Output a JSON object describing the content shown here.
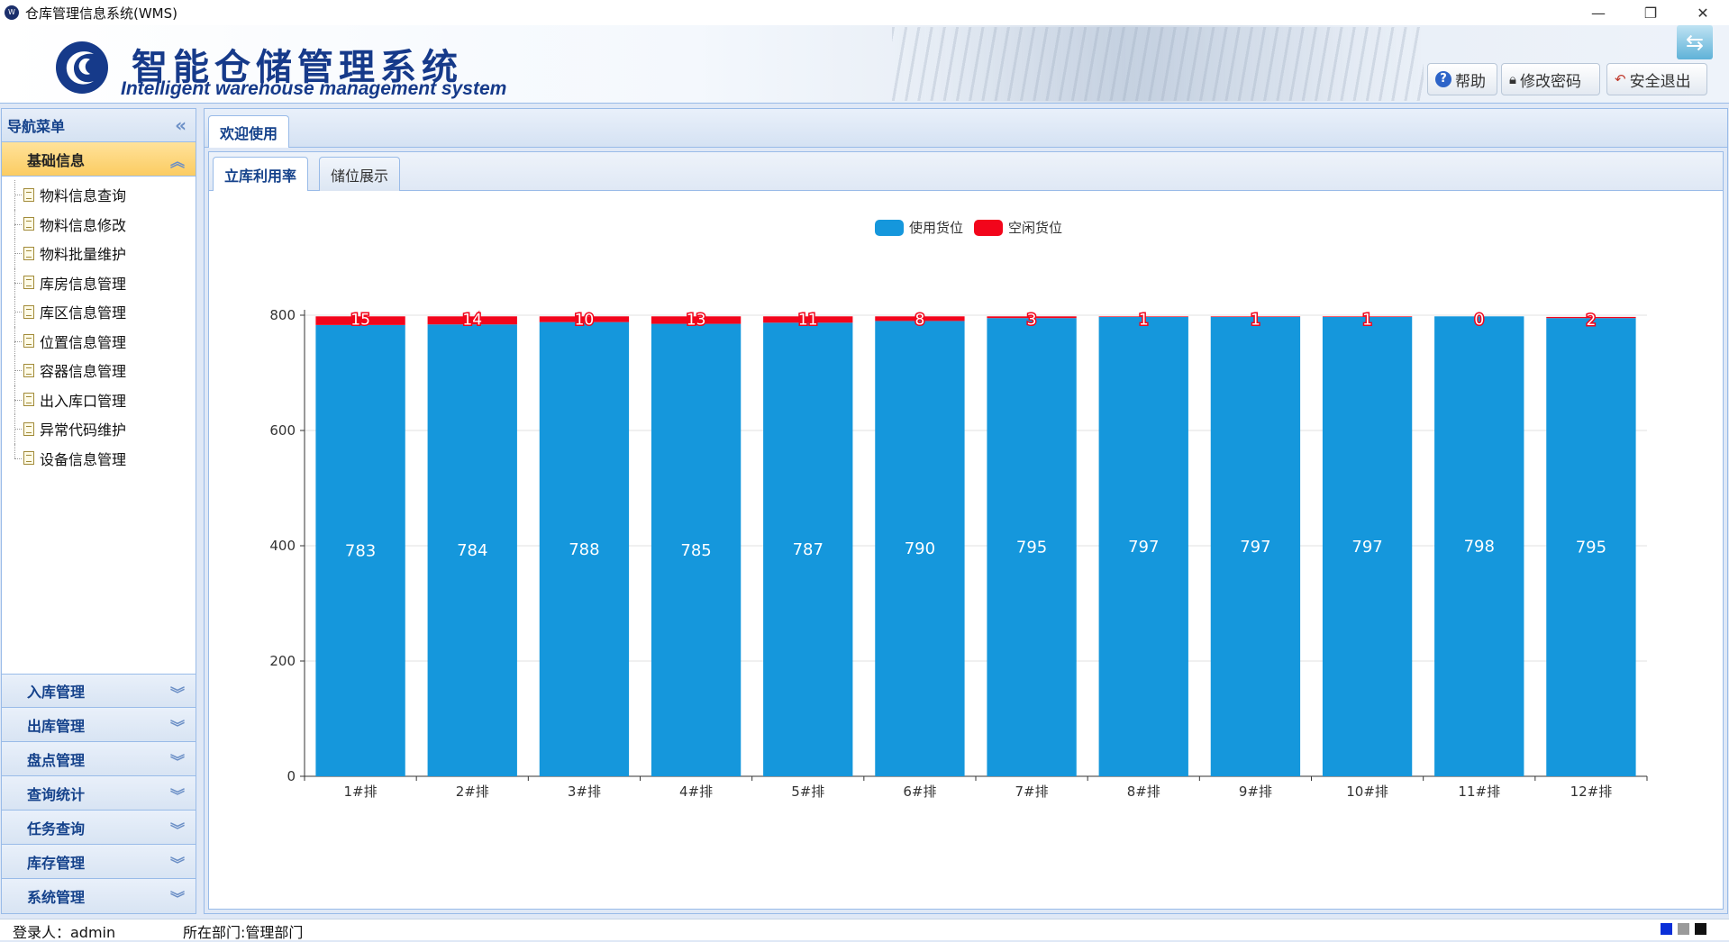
{
  "window": {
    "title": "仓库管理信息系统(WMS)",
    "minimize": "—",
    "maximize": "❐",
    "close": "✕"
  },
  "header": {
    "brand_cn": "智能仓储管理系统",
    "brand_en": "Intelligent warehouse management system",
    "buttons": {
      "help": "帮助",
      "change_password": "修改密码",
      "logout": "安全退出"
    }
  },
  "nav": {
    "title": "导航菜单",
    "active_section": "基础信息",
    "items": [
      "物料信息查询",
      "物料信息修改",
      "物料批量维护",
      "库房信息管理",
      "库区信息管理",
      "位置信息管理",
      "容器信息管理",
      "出入库口管理",
      "异常代码维护",
      "设备信息管理"
    ],
    "sections": [
      "入库管理",
      "出库管理",
      "盘点管理",
      "查询统计",
      "任务查询",
      "库存管理",
      "系统管理"
    ]
  },
  "tabs": {
    "outer": [
      "欢迎使用"
    ],
    "inner": [
      "立库利用率",
      "储位展示"
    ]
  },
  "status": {
    "user": "登录人：admin",
    "dept": "所在部门:管理部门"
  },
  "colors": {
    "used": "#1597dc",
    "empty": "#f2051b",
    "theme_swatches": [
      "#0a2fd8",
      "#9a9a9a",
      "#111111"
    ]
  },
  "chart_data": {
    "type": "bar",
    "stacked": true,
    "categories": [
      "1#排",
      "2#排",
      "3#排",
      "4#排",
      "5#排",
      "6#排",
      "7#排",
      "8#排",
      "9#排",
      "10#排",
      "11#排",
      "12#排"
    ],
    "series": [
      {
        "name": "使用货位",
        "values": [
          783,
          784,
          788,
          785,
          787,
          790,
          795,
          797,
          797,
          797,
          798,
          795
        ]
      },
      {
        "name": "空闲货位",
        "values": [
          15,
          14,
          10,
          13,
          11,
          8,
          3,
          1,
          1,
          1,
          0,
          2
        ]
      }
    ],
    "ylim": [
      0,
      800
    ],
    "yticks": [
      0,
      200,
      400,
      600,
      800
    ],
    "grid": true,
    "legend": "top-center"
  }
}
